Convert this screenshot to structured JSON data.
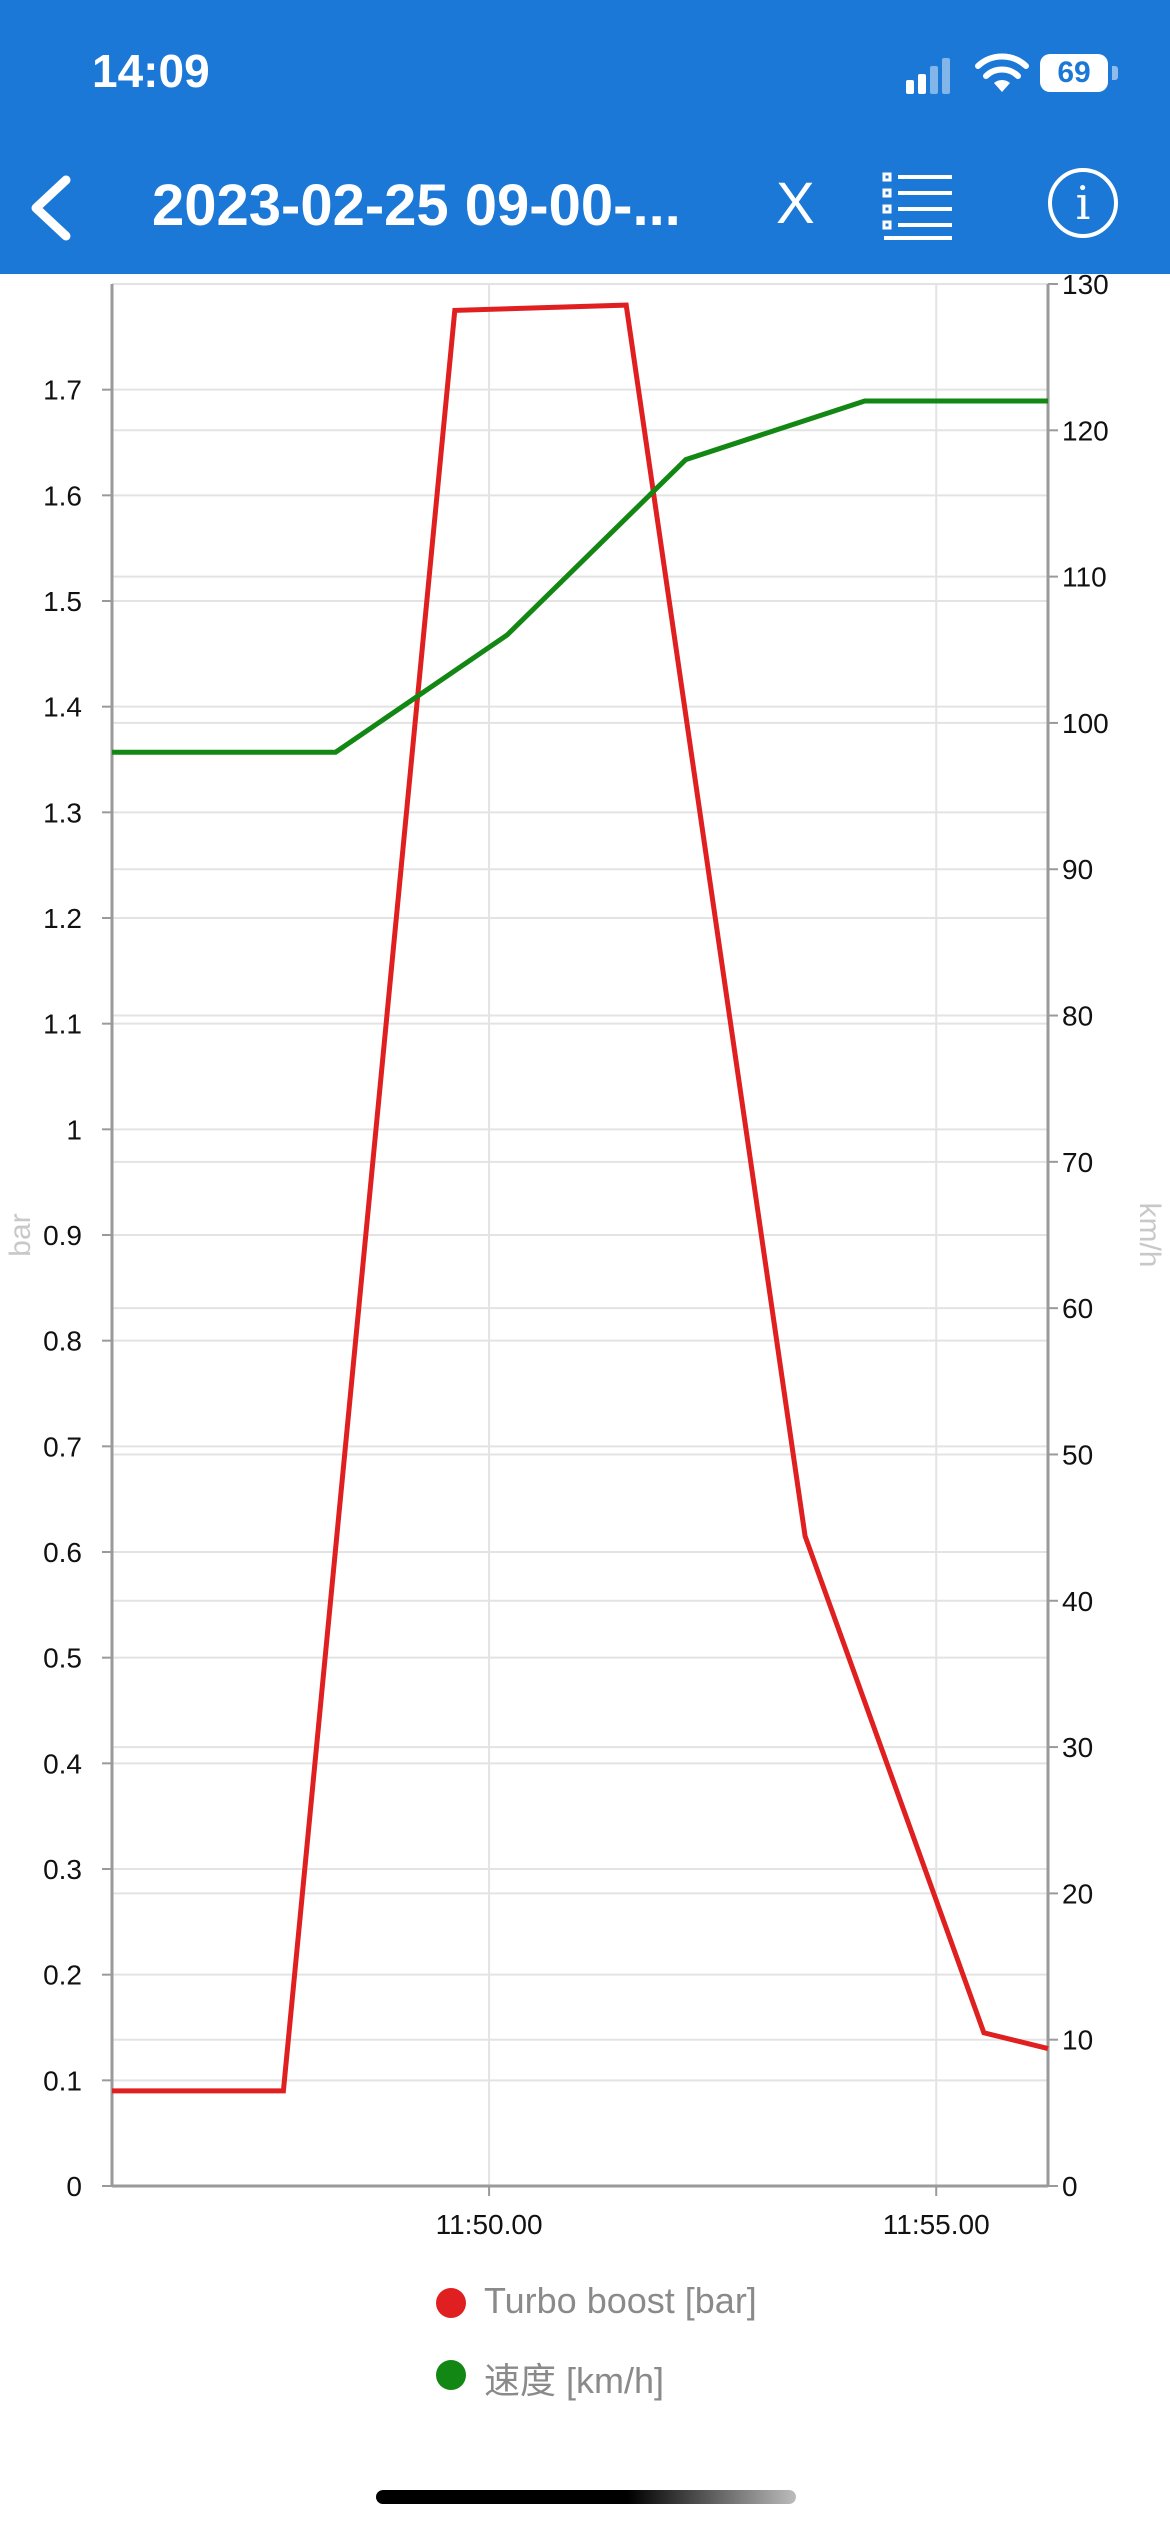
{
  "status_bar": {
    "time": "14:09",
    "battery": "69",
    "icons": [
      "cellular-signal-icon",
      "wifi-icon",
      "battery-icon"
    ]
  },
  "nav": {
    "title": "2023-02-25 09-00-...",
    "close_label": "X",
    "icons": [
      "back-chevron-icon",
      "list-icon",
      "info-icon"
    ]
  },
  "colors": {
    "header": "#1c78d6",
    "turbo": "#e02020",
    "speed": "#138713"
  },
  "chart_data": {
    "type": "line",
    "xlabel": "",
    "ylabel_left": "bar",
    "ylabel_right": "km/h",
    "x_ticks": [
      "11:50.00",
      "11:55.00"
    ],
    "x_unit": "seconds",
    "xlim": [
      0,
      628
    ],
    "x_tick_values": [
      253,
      553
    ],
    "ylim_left": [
      0,
      1.8
    ],
    "ylim_right": [
      0,
      130
    ],
    "y_ticks_left": [
      "0",
      "0.1",
      "0.2",
      "0.3",
      "0.4",
      "0.5",
      "0.6",
      "0.7",
      "0.8",
      "0.9",
      "1",
      "1.1",
      "1.2",
      "1.3",
      "1.4",
      "1.5",
      "1.6",
      "1.7"
    ],
    "y_ticks_right": [
      "0",
      "10",
      "20",
      "30",
      "40",
      "50",
      "60",
      "70",
      "80",
      "90",
      "100",
      "110",
      "120",
      "130"
    ],
    "grid": true,
    "legend_position": "bottom",
    "series": [
      {
        "name": "Turbo boost [bar]",
        "axis": "left",
        "color": "#e02020",
        "x": [
          0,
          115,
          230,
          345,
          465,
          585,
          628
        ],
        "values": [
          0.09,
          0.09,
          1.775,
          1.78,
          0.615,
          0.145,
          0.13
        ]
      },
      {
        "name": "速度 [km/h]",
        "axis": "right",
        "color": "#138713",
        "x": [
          0,
          150,
          265,
          385,
          505,
          628
        ],
        "values": [
          98,
          98,
          106,
          118,
          122,
          122
        ]
      }
    ]
  }
}
